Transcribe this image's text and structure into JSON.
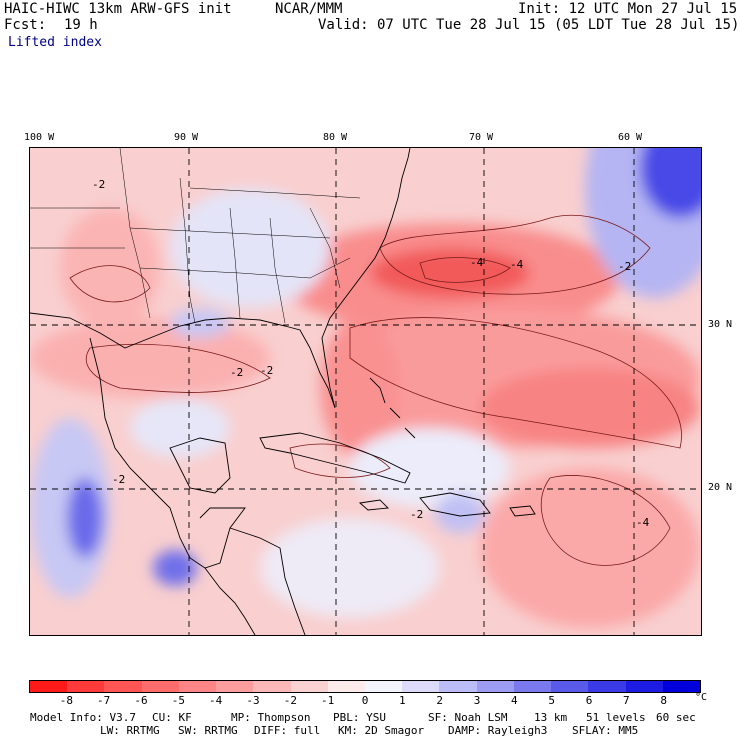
{
  "header": {
    "model": "HAIC-HIWC 13km ARW-GFS init",
    "center": "NCAR/MMM",
    "init": "Init: 12 UTC Mon 27 Jul 15",
    "fcst_label": "Fcst:",
    "fcst_value": "19 h",
    "valid": "Valid: 07 UTC Tue 28 Jul 15 (05 LDT Tue 28 Jul 15)",
    "field": "Lifted index"
  },
  "map": {
    "lon_labels": [
      "100 W",
      "90 W",
      "80 W",
      "70 W",
      "60 W"
    ],
    "lat_labels": [
      "30 N",
      "20 N"
    ],
    "contour_labels": [
      "-2",
      "-2",
      "-2",
      "-2",
      "-2",
      "-4",
      "-4",
      "-4",
      "-2"
    ]
  },
  "colorbar": {
    "labels": [
      "-8",
      "-7",
      "-6",
      "-5",
      "-4",
      "-3",
      "-2",
      "-1",
      "0",
      "1",
      "2",
      "3",
      "4",
      "5",
      "6",
      "7",
      "8"
    ],
    "unit": "°C",
    "colors": [
      "#ff1a1a",
      "#ff3a3a",
      "#ff5555",
      "#fe6c6c",
      "#fd8585",
      "#fc9e9e",
      "#fbb8b8",
      "#fbd2d2",
      "#fcebeb",
      "#f4f4fc",
      "#dcdcfa",
      "#bcbcf6",
      "#9c9cf2",
      "#7a7aee",
      "#5a5aea",
      "#3a3ae6",
      "#1c1ce2",
      "#0000dc"
    ]
  },
  "footer": {
    "model_info": "Model Info: V3.7",
    "cu": "CU: KF",
    "mp": "MP: Thompson",
    "pbl": "PBL: YSU",
    "sf": "SF: Noah LSM",
    "res": "13 km",
    "levels": "51 levels",
    "dt": "60 sec",
    "lw": "LW: RRTMG",
    "sw": "SW: RRTMG",
    "diff": "DIFF: full",
    "km": "KM: 2D Smagor",
    "damp": "DAMP: Rayleigh3",
    "sflay": "SFLAY: MM5"
  }
}
